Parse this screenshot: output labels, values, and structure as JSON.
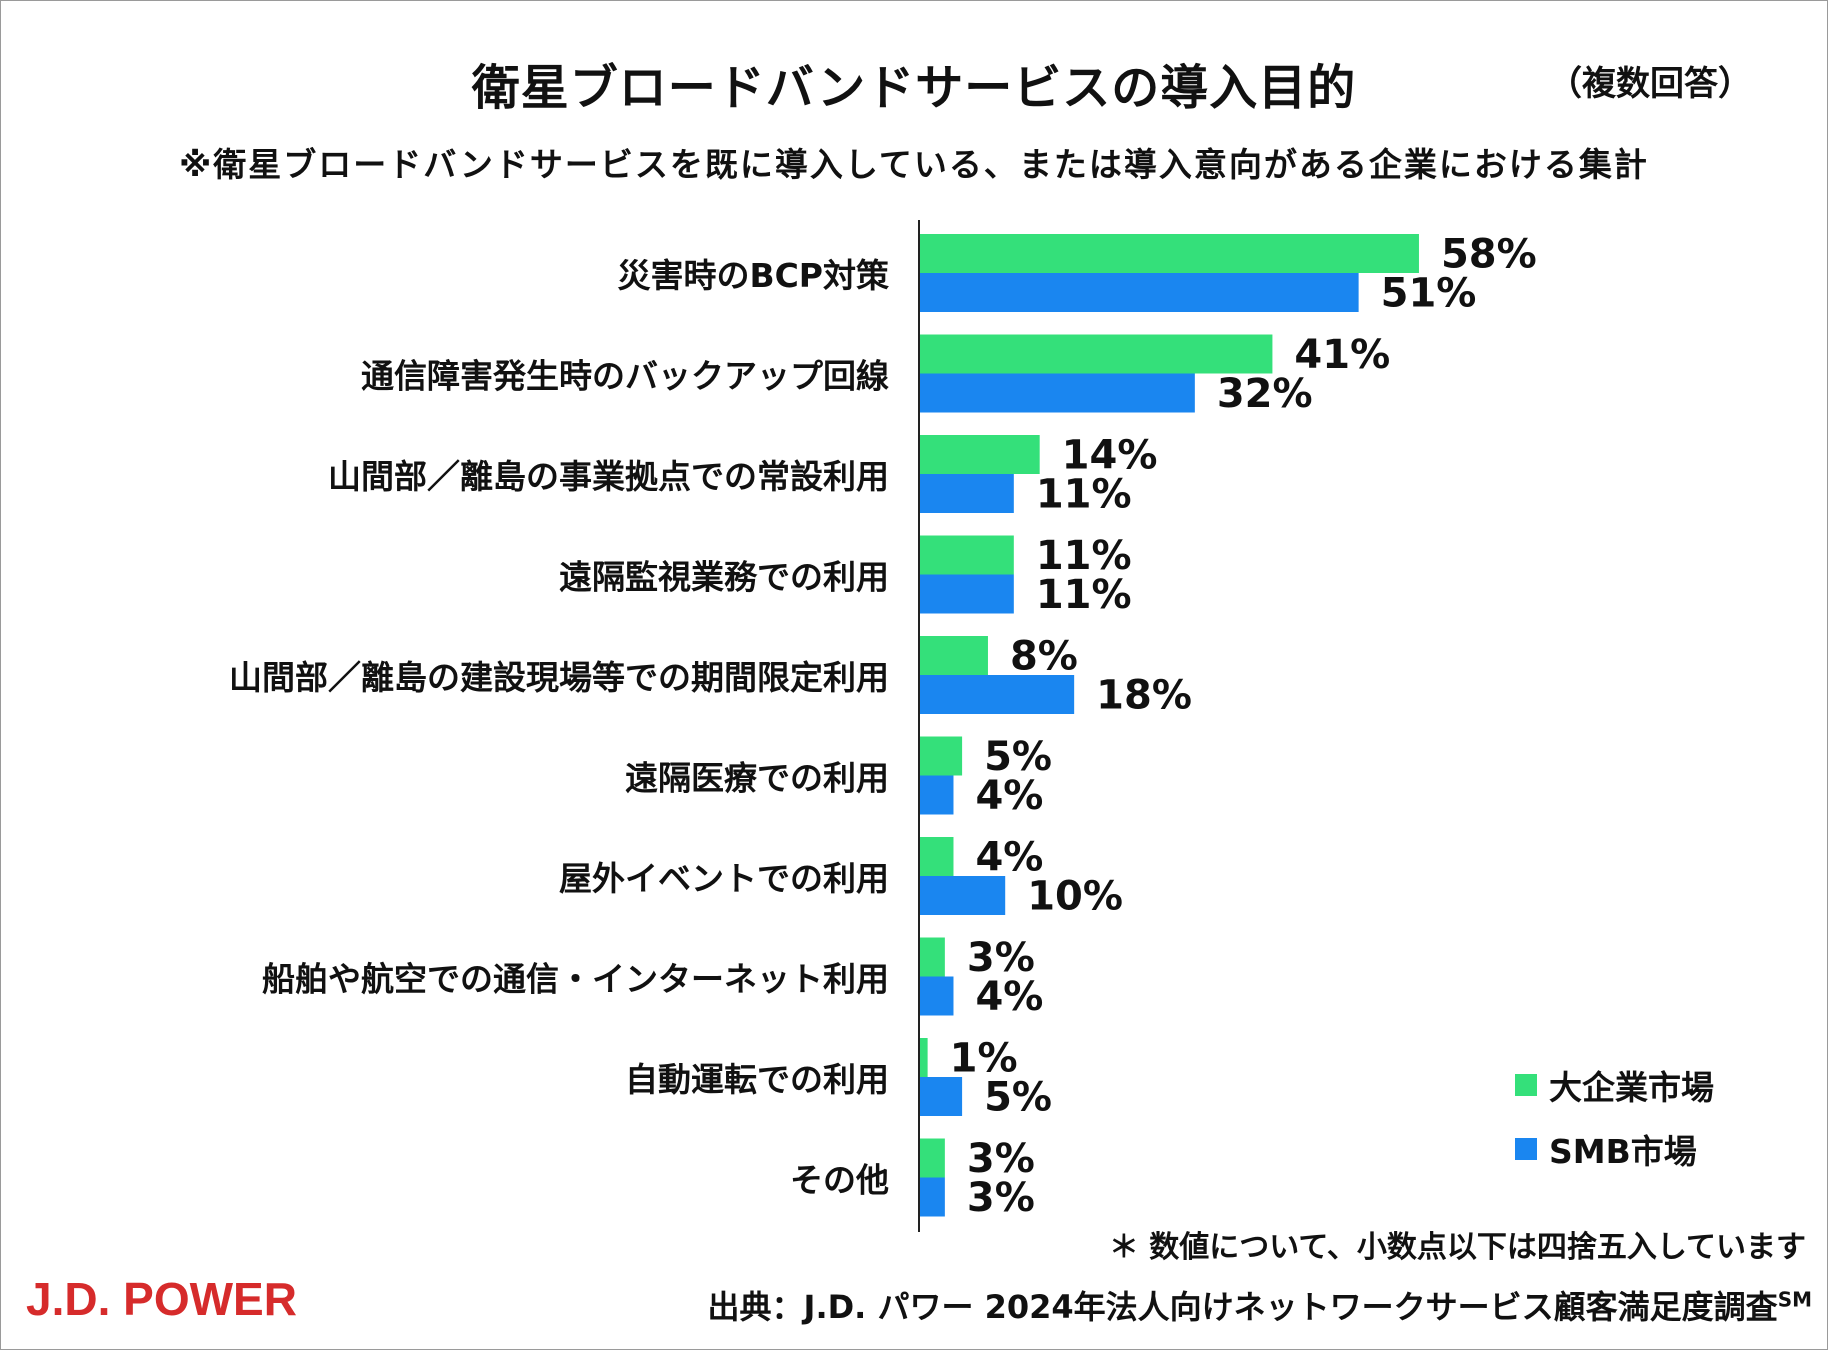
{
  "header": {
    "title": "衛星ブロードバンドサービスの導入目的",
    "multi_answer": "（複数回答）",
    "subtitle": "※衛星ブロードバンドサービスを既に導入している、または導入意向がある企業における集計"
  },
  "chart_data": {
    "type": "bar",
    "orientation": "horizontal",
    "title": "衛星ブロードバンドサービスの導入目的",
    "categories": [
      "災害時のBCP対策",
      "通信障害発生時のバックアップ回線",
      "山間部／離島の事業拠点での常設利用",
      "遠隔監視業務での利用",
      "山間部／離島の建設現場等での期間限定利用",
      "遠隔医療での利用",
      "屋外イベントでの利用",
      "船舶や航空での通信・インターネット利用",
      "自動運転での利用",
      "その他"
    ],
    "series": [
      {
        "name": "大企業市場",
        "color": "#34e07a",
        "values": [
          58,
          41,
          14,
          11,
          8,
          5,
          4,
          3,
          1,
          3
        ]
      },
      {
        "name": "SMB市場",
        "color": "#1a86f0",
        "values": [
          51,
          32,
          11,
          11,
          18,
          4,
          10,
          4,
          5,
          3
        ]
      }
    ],
    "value_suffix": "%",
    "xlim": [
      0,
      100
    ],
    "legend_position": "bottom-right"
  },
  "legend": {
    "items": [
      {
        "label": "大企業市場",
        "color": "#34e07a"
      },
      {
        "label": "SMB市場",
        "color": "#1a86f0"
      }
    ]
  },
  "footer": {
    "footnote": "＊ 数値について、小数点以下は四捨五入しています",
    "logo": "J.D. POWER",
    "source": "出典：J.D. パワー 2024年法人向けネットワークサービス顧客満足度調査",
    "source_mark": "SM",
    "logo_color": "#d62b2b"
  }
}
